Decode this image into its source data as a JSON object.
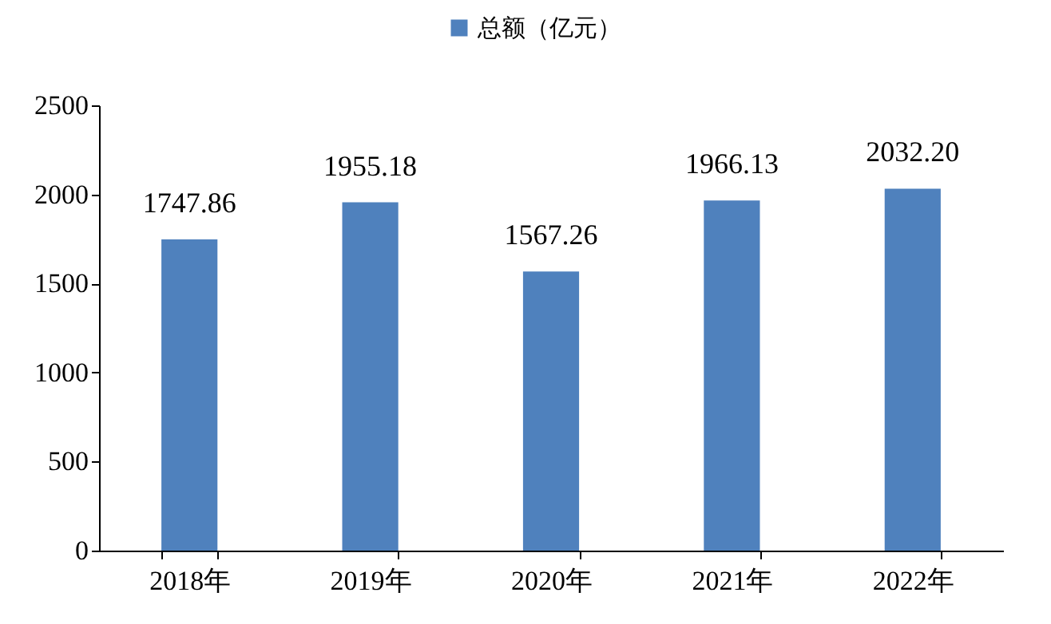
{
  "chart_data": {
    "type": "bar",
    "categories": [
      "2018年",
      "2019年",
      "2020年",
      "2021年",
      "2022年"
    ],
    "series": [
      {
        "name": "总额（亿元）",
        "color": "#4f81bd",
        "values": [
          1747.86,
          1955.18,
          1567.26,
          1966.13,
          2032.2
        ],
        "value_labels": [
          "1747.86",
          "1955.18",
          "1567.26",
          "1966.13",
          "2032.20"
        ]
      }
    ],
    "ylim": [
      0,
      2500
    ],
    "yticks": [
      0,
      500,
      1000,
      1500,
      2000,
      2500
    ],
    "grid": false,
    "legend": "top"
  }
}
